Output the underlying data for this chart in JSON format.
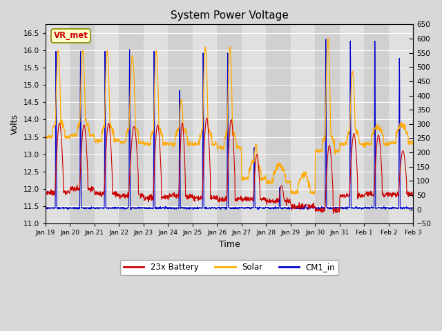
{
  "title": "System Power Voltage",
  "xlabel": "Time",
  "ylabel_left": "Volts",
  "ylim_left": [
    11.0,
    16.75
  ],
  "ylim_right": [
    -50,
    650
  ],
  "yticks_left": [
    11.0,
    11.5,
    12.0,
    12.5,
    13.0,
    13.5,
    14.0,
    14.5,
    15.0,
    15.5,
    16.0,
    16.5
  ],
  "yticks_right": [
    -50,
    0,
    50,
    100,
    150,
    200,
    250,
    300,
    350,
    400,
    450,
    500,
    550,
    600,
    650
  ],
  "xtick_labels": [
    "Jan 19",
    "Jan 20",
    "Jan 21",
    "Jan 22",
    "Jan 23",
    "Jan 24",
    "Jan 25",
    "Jan 26",
    "Jan 27",
    "Jan 28",
    "Jan 29",
    "Jan 30",
    "Jan 31",
    "Feb 1",
    "Feb 2",
    "Feb 3"
  ],
  "colors": {
    "battery": "#cc0000",
    "solar": "#ffaa00",
    "cm1": "#0000cc"
  },
  "legend_labels": [
    "23x Battery",
    "Solar",
    "CM1_in"
  ],
  "annotation_text": "VR_met",
  "annotation_color": "#cc0000",
  "annotation_bg": "#ffffcc",
  "annotation_border": "#888800",
  "bg_color": "#d8d8d8",
  "plot_bg": "#e8e8e8",
  "grid_color": "#ffffff",
  "stripe_light": "#e0e0e0",
  "stripe_dark": "#d0d0d0"
}
